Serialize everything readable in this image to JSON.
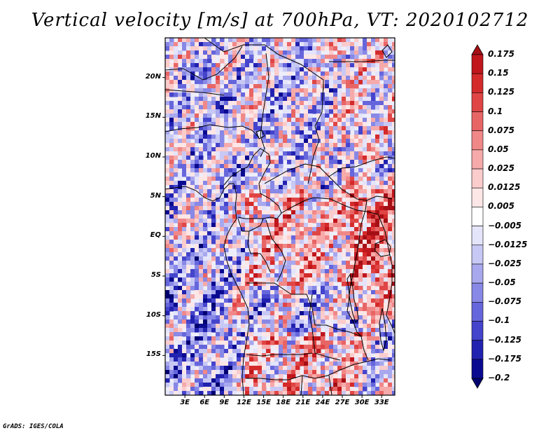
{
  "title": "Vertical velocity [m/s] at 700hPa, VT: 2020102712",
  "credit": "GrADS: IGES/COLA",
  "map": {
    "projection": "lat-lon",
    "lon_range": [
      0,
      35
    ],
    "lat_range": [
      -20,
      25
    ],
    "field": "vertical velocity",
    "units": "m/s",
    "level": "700hPa"
  },
  "lat_labels": [
    "20N",
    "15N",
    "10N",
    "5N",
    "EQ",
    "5S",
    "10S",
    "15S"
  ],
  "lon_labels": [
    "3E",
    "6E",
    "9E",
    "12E",
    "15E",
    "18E",
    "21E",
    "24E",
    "27E",
    "30E",
    "33E"
  ],
  "colorbar": {
    "levels": [
      "0.175",
      "0.15",
      "0.125",
      "0.1",
      "0.075",
      "0.05",
      "0.025",
      "0.0125",
      "0.005",
      "-0.005",
      "-0.0125",
      "-0.025",
      "-0.05",
      "-0.075",
      "-0.1",
      "-0.125",
      "-0.175",
      "-0.2"
    ],
    "colors": [
      "#a50f15",
      "#c0161c",
      "#d42a2a",
      "#e04545",
      "#e86565",
      "#f08888",
      "#f6aaaa",
      "#fbcccc",
      "#fde6e6",
      "#ffffff",
      "#e4e4fb",
      "#c8c8f5",
      "#a8a8ee",
      "#8888e6",
      "#6666dc",
      "#4444cc",
      "#2222b0",
      "#0a0a90",
      "#000070"
    ]
  }
}
